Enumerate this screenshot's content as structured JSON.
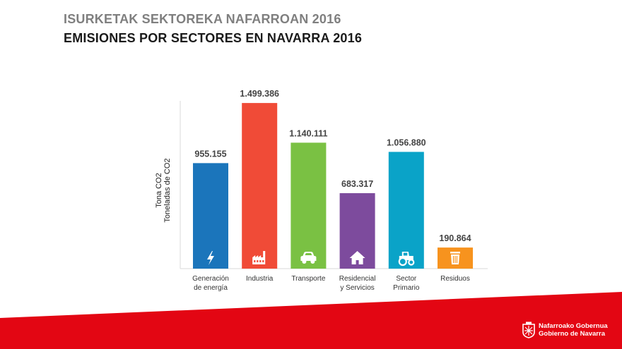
{
  "header": {
    "title_eu": "ISURKETAK SEKTOREKA NAFARROAN 2016",
    "title_es": "EMISIONES POR SECTORES EN NAVARRA 2016"
  },
  "chart_data": {
    "type": "bar",
    "ylabel_lines": [
      "Tona CO2",
      "Toneladas de CO2"
    ],
    "ylim": [
      0,
      1500000
    ],
    "grid": false,
    "legend": "none",
    "bars": [
      {
        "category_lines": [
          "Generación",
          "de energía"
        ],
        "value": 955155,
        "value_label": "955.155",
        "color": "#1b75bb",
        "icon": "lightning-icon"
      },
      {
        "category_lines": [
          "Industria"
        ],
        "value": 1499386,
        "value_label": "1.499.386",
        "color": "#f04b37",
        "icon": "factory-icon"
      },
      {
        "category_lines": [
          "Transporte"
        ],
        "value": 1140111,
        "value_label": "1.140.111",
        "color": "#7ac143",
        "icon": "car-icon"
      },
      {
        "category_lines": [
          "Residencial",
          "y Servicios"
        ],
        "value": 683317,
        "value_label": "683.317",
        "color": "#7d4b9d",
        "icon": "house-icon"
      },
      {
        "category_lines": [
          "Sector",
          "Primario"
        ],
        "value": 1056880,
        "value_label": "1.056.880",
        "color": "#0aa3c8",
        "icon": "tractor-icon"
      },
      {
        "category_lines": [
          "Residuos"
        ],
        "value": 190864,
        "value_label": "190.864",
        "color": "#f7931e",
        "icon": "trash-icon"
      }
    ],
    "colors": {
      "axis": "#d9d9d9",
      "label": "#333333",
      "value_label": "#444444"
    }
  },
  "footer": {
    "band_color": "#e30613",
    "brand_line1": "Nafarroako Gobernua",
    "brand_line2": "Gobierno de Navarra"
  }
}
